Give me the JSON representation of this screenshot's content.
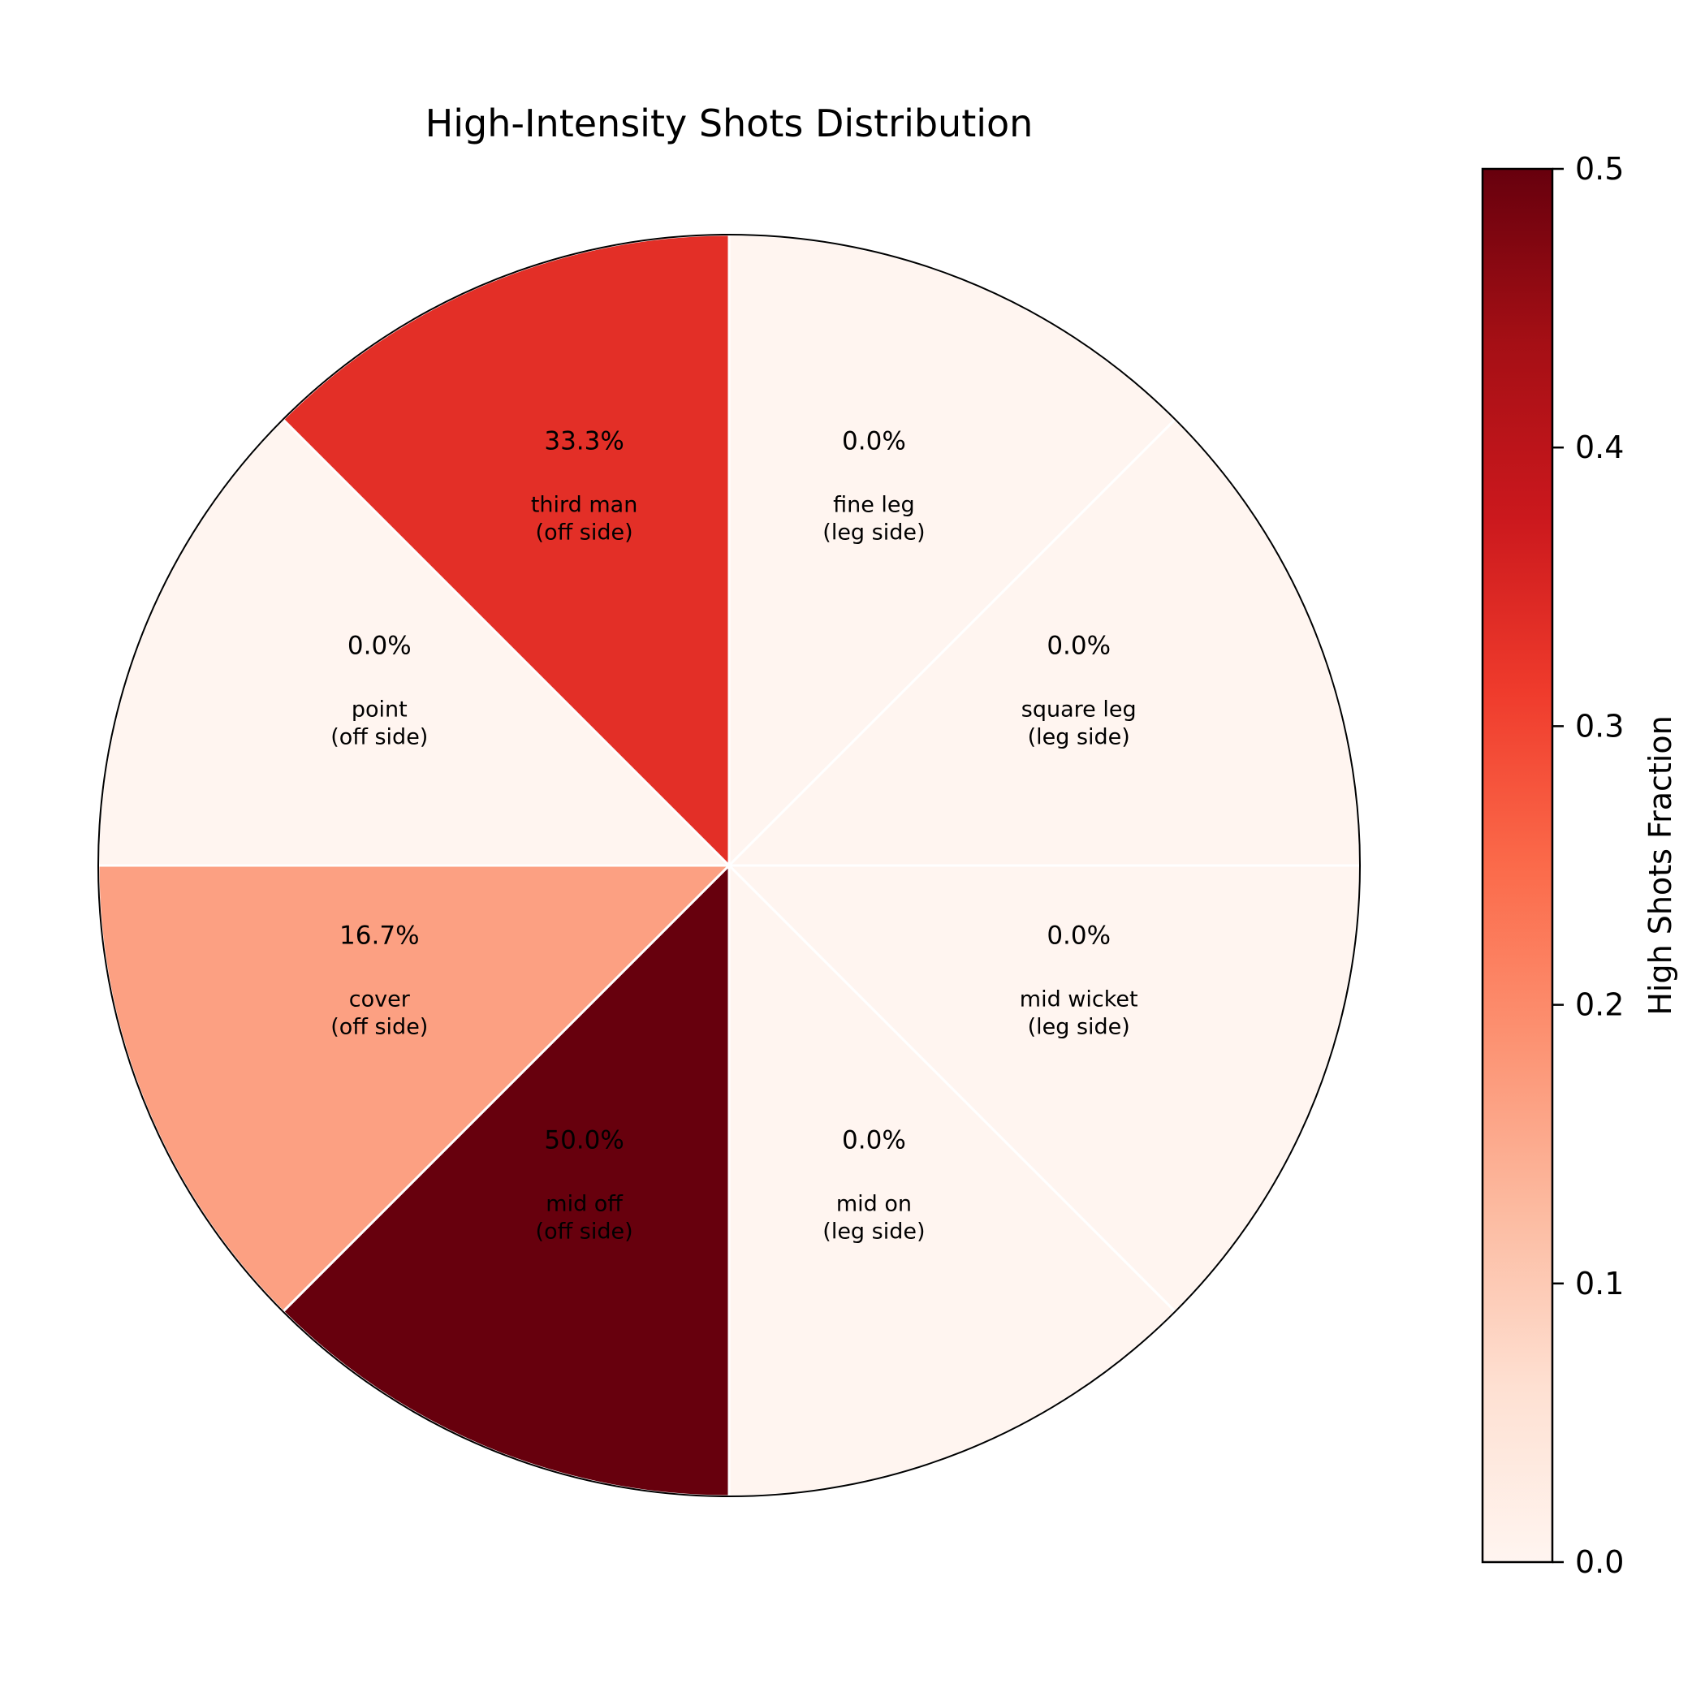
{
  "chart_data": {
    "type": "pie",
    "title": "High-Intensity Shots Distribution",
    "colorscale": "Reds",
    "colormap_stops": [
      "#fff5f0",
      "#fee0d2",
      "#fcbba1",
      "#fc9272",
      "#fb6a4a",
      "#ef3b2c",
      "#cb181d",
      "#a50f15",
      "#67000d"
    ],
    "sectors": [
      {
        "name": "fine leg",
        "side": "(leg side)",
        "value": 1,
        "fraction": 0.0,
        "pct_label": "0.0%"
      },
      {
        "name": "square leg",
        "side": "(leg side)",
        "value": 1,
        "fraction": 0.0,
        "pct_label": "0.0%"
      },
      {
        "name": "mid wicket",
        "side": "(leg side)",
        "value": 1,
        "fraction": 0.0,
        "pct_label": "0.0%"
      },
      {
        "name": "mid on",
        "side": "(leg side)",
        "value": 1,
        "fraction": 0.0,
        "pct_label": "0.0%"
      },
      {
        "name": "mid off",
        "side": "(off side)",
        "value": 1,
        "fraction": 0.5,
        "pct_label": "50.0%"
      },
      {
        "name": "cover",
        "side": "(off side)",
        "value": 1,
        "fraction": 0.1667,
        "pct_label": "16.7%"
      },
      {
        "name": "point",
        "side": "(off side)",
        "value": 1,
        "fraction": 0.0,
        "pct_label": "0.0%"
      },
      {
        "name": "third man",
        "side": "(off side)",
        "value": 1,
        "fraction": 0.3333,
        "pct_label": "33.3%"
      }
    ],
    "start_angle_deg": 90,
    "direction": "clockwise",
    "colorbar": {
      "label": "High Shots Fraction",
      "range": [
        0,
        0.5
      ],
      "ticks": [
        0.0,
        0.1,
        0.2,
        0.3,
        0.4,
        0.5
      ],
      "tick_labels": [
        "0.0",
        "0.1",
        "0.2",
        "0.3",
        "0.4",
        "0.5"
      ]
    }
  }
}
